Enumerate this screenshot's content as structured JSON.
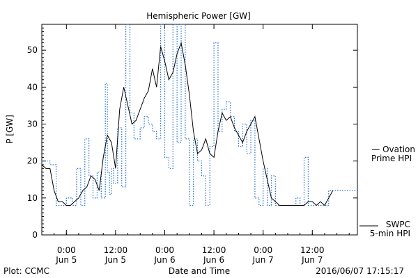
{
  "chart_data": {
    "type": "line",
    "title": "Hemispheric Power [GW]",
    "ylabel": "P [GW]",
    "xlabel": "Date and Time",
    "ylim": [
      0,
      57
    ],
    "yticks": [
      0,
      10,
      20,
      30,
      40,
      50
    ],
    "xlim": [
      "2016-06-04T18:00",
      "2016-06-07T23:00"
    ],
    "xticks": [
      {
        "time": "2016-06-05T00:00",
        "line1": "0:00",
        "line2": "Jun 5"
      },
      {
        "time": "2016-06-05T12:00",
        "line1": "12:00",
        "line2": "Jun 5"
      },
      {
        "time": "2016-06-06T00:00",
        "line1": "0:00",
        "line2": "Jun 6"
      },
      {
        "time": "2016-06-06T12:00",
        "line1": "12:00",
        "line2": "Jun 6"
      },
      {
        "time": "2016-06-07T00:00",
        "line1": "0:00",
        "line2": "Jun 7"
      },
      {
        "time": "2016-06-07T12:00",
        "line1": "12:00",
        "line2": "Jun 7"
      }
    ],
    "grid": false,
    "series": [
      {
        "name": "Ovation Prime HPI",
        "legend_lines": [
          "— Ovation",
          "Prime HPI"
        ],
        "style": "dotted-step",
        "color": "#1f6fd1",
        "x": [
          "2016-06-04T18:00",
          "2016-06-04T20:00",
          "2016-06-04T21:30",
          "2016-06-04T22:30",
          "2016-06-05T00:00",
          "2016-06-05T01:30",
          "2016-06-05T02:30",
          "2016-06-05T03:30",
          "2016-06-05T04:30",
          "2016-06-05T05:30",
          "2016-06-05T06:30",
          "2016-06-05T07:30",
          "2016-06-05T08:30",
          "2016-06-05T09:30",
          "2016-06-05T10:00",
          "2016-06-05T10:30",
          "2016-06-05T11:00",
          "2016-06-05T11:30",
          "2016-06-05T12:30",
          "2016-06-05T13:30",
          "2016-06-05T14:30",
          "2016-06-05T15:30",
          "2016-06-05T16:30",
          "2016-06-05T18:00",
          "2016-06-05T19:00",
          "2016-06-05T20:00",
          "2016-06-05T21:00",
          "2016-06-05T22:00",
          "2016-06-05T23:00",
          "2016-06-06T00:00",
          "2016-06-06T01:00",
          "2016-06-06T02:00",
          "2016-06-06T03:00",
          "2016-06-06T04:00",
          "2016-06-06T05:00",
          "2016-06-06T06:00",
          "2016-06-06T07:00",
          "2016-06-06T08:00",
          "2016-06-06T09:00",
          "2016-06-06T10:00",
          "2016-06-06T11:00",
          "2016-06-06T12:00",
          "2016-06-06T13:00",
          "2016-06-06T14:00",
          "2016-06-06T15:00",
          "2016-06-06T16:00",
          "2016-06-06T17:00",
          "2016-06-06T18:00",
          "2016-06-06T19:00",
          "2016-06-06T20:00",
          "2016-06-06T21:00",
          "2016-06-06T22:00",
          "2016-06-06T23:00",
          "2016-06-07T00:00",
          "2016-06-07T01:00",
          "2016-06-07T02:00",
          "2016-06-07T03:00",
          "2016-06-07T04:00",
          "2016-06-07T05:00",
          "2016-06-07T06:00",
          "2016-06-07T07:00",
          "2016-06-07T08:00",
          "2016-06-07T09:00",
          "2016-06-07T10:00",
          "2016-06-07T11:00",
          "2016-06-07T12:00",
          "2016-06-07T13:00",
          "2016-06-07T14:00",
          "2016-06-07T15:00",
          "2016-06-07T16:00"
        ],
        "values": [
          20,
          19,
          8,
          8,
          10,
          8,
          18,
          8,
          26,
          16,
          10,
          17,
          10,
          41,
          17,
          11,
          18,
          14,
          29,
          13,
          57,
          33,
          26,
          29,
          32,
          30,
          28,
          26,
          57,
          21,
          18,
          57,
          25,
          57,
          26,
          8,
          26,
          20,
          16,
          8,
          24,
          52,
          28,
          34,
          36,
          32,
          28,
          24,
          30,
          22,
          31,
          10,
          8,
          18,
          8,
          16,
          8,
          8,
          8,
          8,
          8,
          10,
          8,
          21,
          8,
          8,
          8,
          8,
          8,
          12
        ]
      },
      {
        "name": "SWPC 5-min HPI",
        "legend_lines": [
          "SWPC",
          "5-min HPI"
        ],
        "style": "solid",
        "color": "#000000",
        "x": [
          "2016-06-04T18:00",
          "2016-06-04T19:00",
          "2016-06-04T20:00",
          "2016-06-04T21:00",
          "2016-06-04T22:00",
          "2016-06-04T23:00",
          "2016-06-05T00:00",
          "2016-06-05T01:00",
          "2016-06-05T02:00",
          "2016-06-05T03:00",
          "2016-06-05T04:00",
          "2016-06-05T05:00",
          "2016-06-05T06:00",
          "2016-06-05T07:00",
          "2016-06-05T08:00",
          "2016-06-05T09:00",
          "2016-06-05T10:00",
          "2016-06-05T11:00",
          "2016-06-05T12:00",
          "2016-06-05T13:00",
          "2016-06-05T14:00",
          "2016-06-05T15:00",
          "2016-06-05T16:00",
          "2016-06-05T17:00",
          "2016-06-05T18:00",
          "2016-06-05T19:00",
          "2016-06-05T20:00",
          "2016-06-05T21:00",
          "2016-06-05T22:00",
          "2016-06-05T23:00",
          "2016-06-06T00:00",
          "2016-06-06T01:00",
          "2016-06-06T02:00",
          "2016-06-06T03:00",
          "2016-06-06T04:00",
          "2016-06-06T05:00",
          "2016-06-06T06:00",
          "2016-06-06T07:00",
          "2016-06-06T08:00",
          "2016-06-06T09:00",
          "2016-06-06T10:00",
          "2016-06-06T11:00",
          "2016-06-06T12:00",
          "2016-06-06T13:00",
          "2016-06-06T14:00",
          "2016-06-06T15:00",
          "2016-06-06T16:00",
          "2016-06-06T17:00",
          "2016-06-06T18:00",
          "2016-06-06T19:00",
          "2016-06-06T20:00",
          "2016-06-06T21:00",
          "2016-06-06T22:00",
          "2016-06-06T23:00",
          "2016-06-07T00:00",
          "2016-06-07T01:00",
          "2016-06-07T02:00",
          "2016-06-07T03:00",
          "2016-06-07T04:00",
          "2016-06-07T05:00",
          "2016-06-07T06:00",
          "2016-06-07T07:00",
          "2016-06-07T08:00",
          "2016-06-07T09:00",
          "2016-06-07T10:00",
          "2016-06-07T11:00",
          "2016-06-07T12:00",
          "2016-06-07T13:00",
          "2016-06-07T14:00",
          "2016-06-07T15:00",
          "2016-06-07T16:00",
          "2016-06-07T17:00"
        ],
        "values": [
          19,
          18,
          18,
          12,
          9,
          9,
          8,
          8,
          9,
          10,
          12,
          13,
          16,
          15,
          12,
          21,
          27,
          25,
          18,
          34,
          40,
          35,
          30,
          31,
          34,
          37,
          39,
          45,
          40,
          51,
          47,
          42,
          44,
          49,
          52,
          46,
          38,
          28,
          22,
          23,
          26,
          22,
          21,
          28,
          33,
          31,
          32,
          29,
          27,
          25,
          28,
          30,
          32,
          26,
          20,
          15,
          10,
          9,
          8,
          8,
          8,
          8,
          8,
          8,
          8,
          9,
          9,
          8,
          9,
          8,
          10,
          12
        ]
      }
    ],
    "footer_left": "Plot: CCMC",
    "footer_right": "2016/06/07 17:15:17"
  }
}
